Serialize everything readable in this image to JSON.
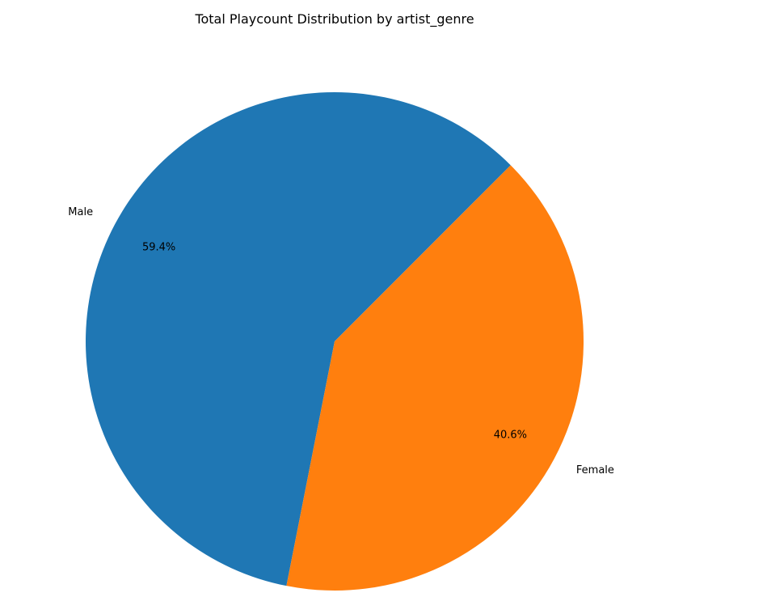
{
  "chart_data": {
    "type": "pie",
    "title": "Total Playcount Distribution by artist_genre",
    "slices": [
      {
        "label": "Male",
        "value": 59.4,
        "pct_text": "59.4%",
        "color": "#1f77b4"
      },
      {
        "label": "Female",
        "value": 40.6,
        "pct_text": "40.6%",
        "color": "#ff7f0e"
      }
    ],
    "legend": "none"
  }
}
